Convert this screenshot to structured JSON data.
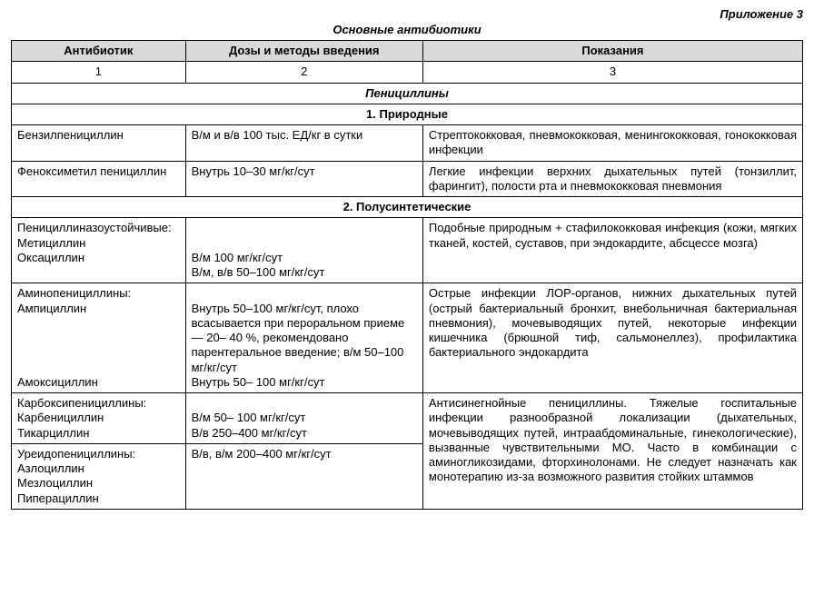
{
  "appendix_label": "Приложение 3",
  "title": "Основные антибиотики",
  "headers": {
    "col1": "Антибиотик",
    "col2": "Дозы и методы введения",
    "col3": "Показания"
  },
  "numrow": {
    "c1": "1",
    "c2": "2",
    "c3": "3"
  },
  "sections": {
    "penicillins": "Пенициллины",
    "natural": "1. Природные",
    "semisynthetic": "2. Полусинтетические"
  },
  "rows": {
    "r1": {
      "antibiotic": "Бензилпенициллин",
      "dose": "В/м и в/в 100 тыс. ЕД/кг в сутки",
      "indication": "Стрептококковая, пневмококковая, менингококковая, гонококковая инфекции"
    },
    "r2": {
      "antibiotic": "Феноксиметил пенициллин",
      "dose": "Внутрь 10–30 мг/кг/сут",
      "indication": "Легкие инфекции верхних дыхательных путей (тонзиллит, фарингит), полости рта и пневмококковая пневмония"
    },
    "r3": {
      "antibiotic": "Пенициллиназоустойчивые:\nМетициллин\nОксациллин",
      "dose": "\n\nВ/м 100 мг/кг/сут\nВ/м, в/в 50–100 мг/кг/сут",
      "indication": "Подобные природным + стафилококковая инфекция (кожи, мягких тканей, костей, суставов, при эндокардите, абсцессе мозга)"
    },
    "r4": {
      "antibiotic": "Аминопенициллины:\nАмпициллин\n\n\n\n\nАмоксициллин",
      "dose": "\nВнутрь 50–100 мг/кг/сут, плохо всасывается при пероральном приеме — 20– 40 %, рекомендовано парентеральное введение; в/м 50–100 мг/кг/сут\nВнутрь 50– 100 мг/кг/сут",
      "indication": "Острые инфекции ЛОР-органов, нижних дыхательных путей (острый бактериальный бронхит, внебольничная бактериальная пневмония), мочевыводящих путей, некоторые инфекции кишечника (брюшной тиф, сальмонеллез), профилактика бактериального эндокардита"
    },
    "r5": {
      "antibiotic": "Карбоксипенициллины:\nКарбенициллин\nТикарциллин",
      "dose": "\nВ/м 50– 100 мг/кг/сут\nВ/в 250–400 мг/кг/сут",
      "indication": "Антисинегнойные пенициллины. Тяжелые госпитальные инфекции разнообразной локализации (дыхательных, мочевыводящих путей, интраабдоминальные, гинекологические), вызванные чувствительными МО. Часто в комбинации с аминогликозидами, фторхинолонами. Не следует назначать как монотерапию из-за возможного развития стойких штаммов"
    },
    "r6": {
      "antibiotic": "Уреидопенициллины:\nАзлоциллин\nМезлоциллин\nПиперациллин",
      "dose": "В/в, в/м 200–400 мг/кг/сут"
    }
  }
}
